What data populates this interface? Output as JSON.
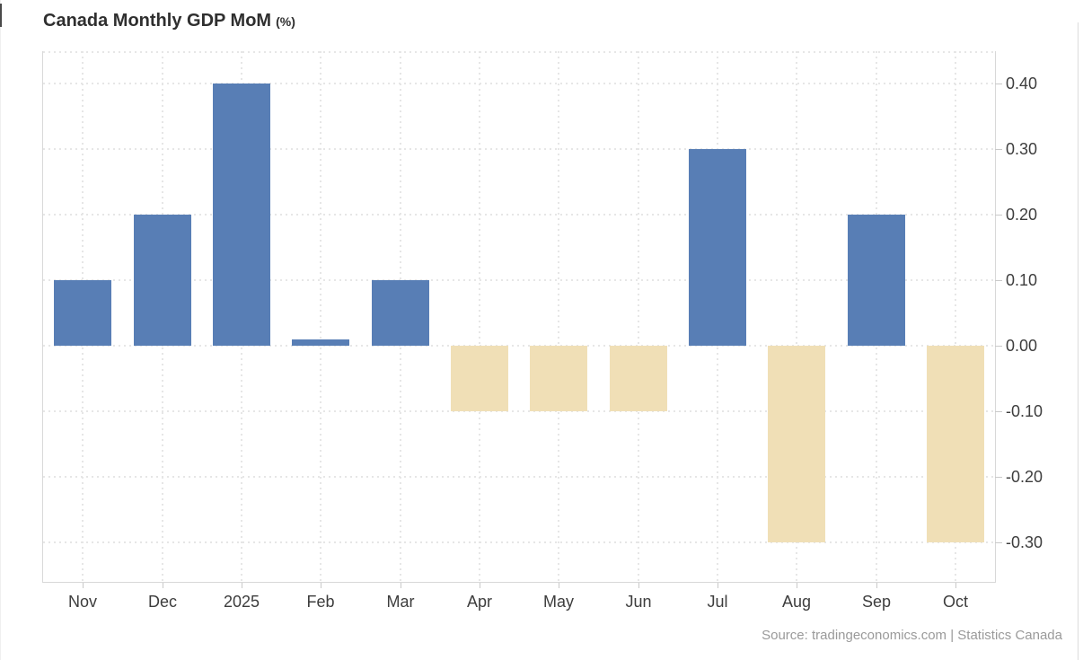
{
  "page": {
    "title_main": "Canada Monthly GDP MoM",
    "title_unit": "(%)",
    "source": "Source: tradingeconomics.com | Statistics Canada"
  },
  "colors": {
    "positive_bar": "#587eb5",
    "negative_bar": "#f0dfb6",
    "gridline": "#e6e6e6",
    "axis_line": "#d8d8d8",
    "tick": "#c9c9c9",
    "label_text": "#3d3d3d",
    "title_text": "#2f2f2f",
    "source_text": "#9a9a9a"
  },
  "chart_data": {
    "type": "bar",
    "title": "Canada Monthly GDP MoM (%)",
    "series_name": "Canada Monthly GDP MoM",
    "categories": [
      "Nov",
      "Dec",
      "2025",
      "Feb",
      "Mar",
      "Apr",
      "May",
      "Jun",
      "Jul",
      "Aug",
      "Sep",
      "Oct"
    ],
    "values": [
      0.1,
      0.2,
      0.4,
      0.01,
      0.1,
      -0.1,
      -0.1,
      -0.1,
      0.3,
      -0.3,
      0.2,
      -0.3
    ],
    "xlabel": "",
    "ylabel": "%",
    "ylim": [
      -0.36,
      0.45
    ],
    "yticks": [
      {
        "value": 0.4,
        "label": "0.40"
      },
      {
        "value": 0.3,
        "label": "0.30"
      },
      {
        "value": 0.2,
        "label": "0.20"
      },
      {
        "value": 0.1,
        "label": "0.10"
      },
      {
        "value": 0.0,
        "label": "0.00"
      },
      {
        "value": -0.1,
        "label": "-0.10"
      },
      {
        "value": -0.2,
        "label": "-0.20"
      },
      {
        "value": -0.3,
        "label": "-0.30"
      }
    ],
    "grid": true,
    "gridline_style": "dotted",
    "legend": false,
    "yaxis_position": "right",
    "positive_color": "#587eb5",
    "negative_color": "#f0dfb6"
  }
}
